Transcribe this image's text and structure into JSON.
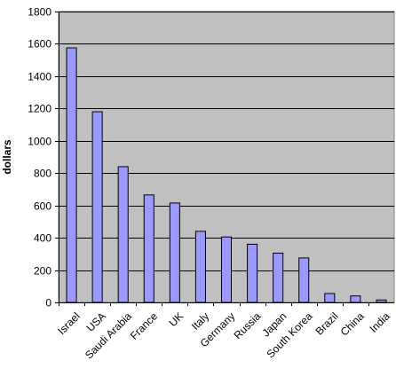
{
  "chart_data": {
    "type": "bar",
    "title": "",
    "xlabel": "",
    "ylabel": "dollars",
    "categories": [
      "Israel",
      "USA",
      "Saudi Arabia",
      "France",
      "UK",
      "Italy",
      "Germany",
      "Russia",
      "Japan",
      "South Korea",
      "Brazil",
      "China",
      "India"
    ],
    "values": [
      1575,
      1180,
      840,
      665,
      615,
      440,
      405,
      360,
      305,
      275,
      55,
      40,
      15
    ],
    "ylim": [
      0,
      1800
    ],
    "yticks": [
      0,
      200,
      400,
      600,
      800,
      1000,
      1200,
      1400,
      1600,
      1800
    ],
    "ytick_labels": [
      "0",
      "200",
      "400",
      "600",
      "800",
      "1000",
      "1200",
      "1400",
      "1600",
      "1800"
    ],
    "grid": true,
    "legend": "none",
    "colors": {
      "plot_background": "#c0c0c0",
      "bar_fill": "#9999ff",
      "bar_stroke": "#000000",
      "gridline": "#000000"
    }
  }
}
